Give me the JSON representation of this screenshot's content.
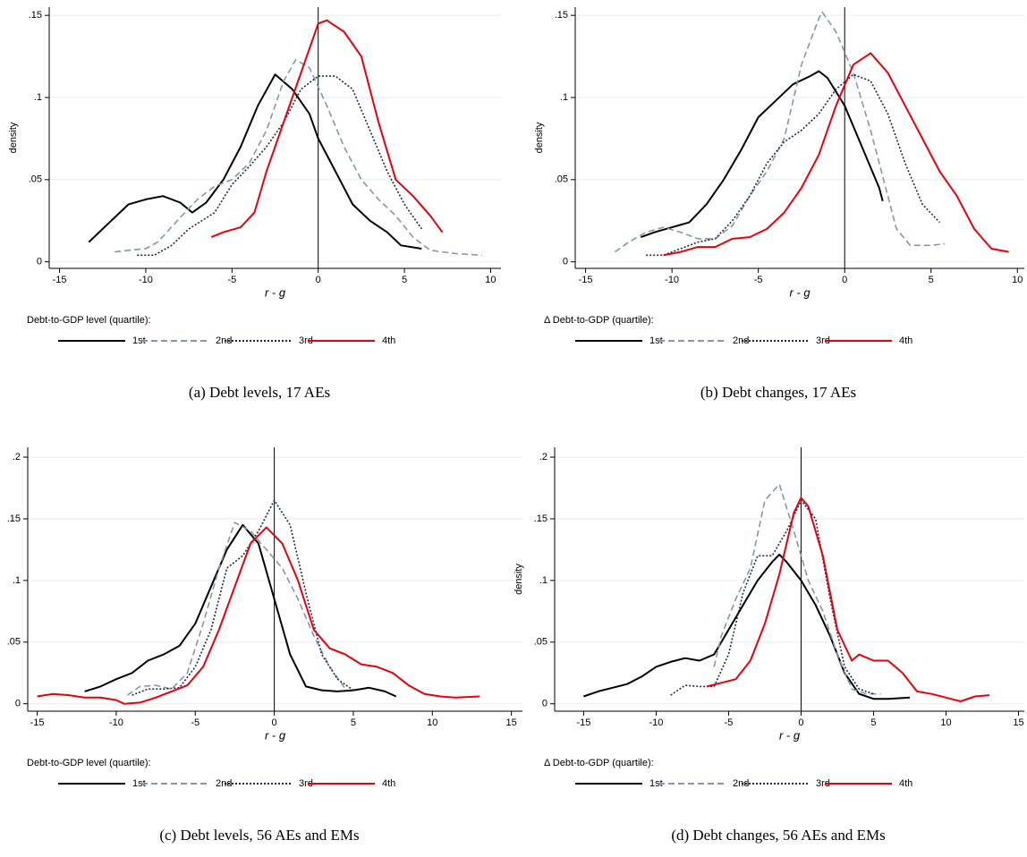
{
  "chart_data": [
    {
      "type": "line",
      "caption": "(a) Debt levels, 17 AEs",
      "ylabel": "density",
      "xlabel": "r - g",
      "legend_title": "Debt-to-GDP level (quartile):",
      "xlim": [
        -15.6,
        10.6
      ],
      "ylim": [
        -0.004,
        0.155
      ],
      "xticks": [
        -15,
        -10,
        -5,
        0,
        5,
        10
      ],
      "yticks": [
        0,
        {
          "value": 0.05,
          "label": ".05"
        },
        {
          "value": 0.1,
          "label": ".1"
        },
        {
          "value": 0.15,
          "label": ".15"
        }
      ],
      "vline": 0,
      "grid": true,
      "series": [
        {
          "name": "1st",
          "color": "#000000",
          "dash": "solid",
          "x": [
            -13.3,
            -12,
            -11,
            -10,
            -9,
            -8,
            -7.3,
            -6.5,
            -5.5,
            -4.5,
            -3.5,
            -2.5,
            -1.5,
            -0.5,
            0,
            1,
            2,
            3,
            4,
            4.8,
            6
          ],
          "values": [
            0.012,
            0.025,
            0.035,
            0.038,
            0.04,
            0.036,
            0.03,
            0.036,
            0.05,
            0.07,
            0.095,
            0.114,
            0.105,
            0.09,
            0.075,
            0.055,
            0.035,
            0.025,
            0.018,
            0.01,
            0.008
          ]
        },
        {
          "name": "2nd",
          "color": "#8596ae",
          "dash": "dashed",
          "x": [
            -11.8,
            -11,
            -10,
            -9.3,
            -8,
            -7,
            -6,
            -5,
            -4,
            -3,
            -2,
            -1.3,
            -0.5,
            0.5,
            1.5,
            2.5,
            3.5,
            4.5,
            5.5,
            6.5,
            8,
            9.5
          ],
          "values": [
            0.006,
            0.007,
            0.008,
            0.012,
            0.027,
            0.038,
            0.046,
            0.05,
            0.06,
            0.08,
            0.11,
            0.123,
            0.118,
            0.095,
            0.07,
            0.05,
            0.038,
            0.028,
            0.015,
            0.007,
            0.005,
            0.004
          ]
        },
        {
          "name": "3rd",
          "color": "#1c2b4c",
          "dash": "dotted",
          "x": [
            -10.5,
            -9.5,
            -8.5,
            -7.5,
            -6,
            -5,
            -4,
            -3,
            -2,
            -1,
            0,
            1,
            2,
            3,
            4,
            5,
            6
          ],
          "values": [
            0.004,
            0.004,
            0.01,
            0.02,
            0.03,
            0.047,
            0.058,
            0.07,
            0.085,
            0.105,
            0.113,
            0.113,
            0.105,
            0.08,
            0.055,
            0.035,
            0.02
          ]
        },
        {
          "name": "4th",
          "color": "#e8000b",
          "dash": "solid",
          "x": [
            -6.2,
            -5.5,
            -4.5,
            -3.7,
            -3,
            -2,
            -1,
            0,
            0.5,
            1.5,
            2.5,
            3.5,
            4.5,
            5.5,
            6.5,
            7.2
          ],
          "values": [
            0.015,
            0.018,
            0.021,
            0.03,
            0.055,
            0.085,
            0.115,
            0.145,
            0.147,
            0.14,
            0.125,
            0.085,
            0.05,
            0.04,
            0.028,
            0.018
          ]
        }
      ]
    },
    {
      "type": "line",
      "caption": "(b) Debt changes, 17 AEs",
      "ylabel": "density",
      "xlabel": "r - g",
      "legend_title": "Δ Debt-to-GDP (quartile):",
      "xlim": [
        -15.6,
        10.4
      ],
      "ylim": [
        -0.004,
        0.155
      ],
      "xticks": [
        -15,
        -10,
        -5,
        0,
        5,
        10
      ],
      "yticks": [
        0,
        {
          "value": 0.05,
          "label": ".05"
        },
        {
          "value": 0.1,
          "label": ".1"
        },
        {
          "value": 0.15,
          "label": ".15"
        }
      ],
      "vline": 0,
      "grid": true,
      "series": [
        {
          "name": "1st",
          "color": "#000000",
          "dash": "solid",
          "x": [
            -11.8,
            -11,
            -10,
            -9,
            -8,
            -7,
            -6,
            -5,
            -4,
            -3,
            -2,
            -1.5,
            -1,
            0,
            1,
            2,
            2.2
          ],
          "values": [
            0.015,
            0.018,
            0.021,
            0.024,
            0.035,
            0.05,
            0.068,
            0.088,
            0.098,
            0.108,
            0.113,
            0.116,
            0.112,
            0.095,
            0.07,
            0.045,
            0.037
          ]
        },
        {
          "name": "2nd",
          "color": "#8596ae",
          "dash": "dashed",
          "x": [
            -13.3,
            -12.5,
            -11.5,
            -10.5,
            -9.5,
            -8.5,
            -7.5,
            -6.5,
            -5.5,
            -4.5,
            -3.5,
            -2.5,
            -1.5,
            -1.3,
            -0.5,
            0.5,
            1.5,
            2.5,
            3,
            3.8,
            5,
            5.8
          ],
          "values": [
            0.006,
            0.012,
            0.018,
            0.021,
            0.018,
            0.014,
            0.014,
            0.022,
            0.04,
            0.055,
            0.075,
            0.12,
            0.148,
            0.152,
            0.14,
            0.115,
            0.08,
            0.04,
            0.02,
            0.01,
            0.01,
            0.011
          ]
        },
        {
          "name": "3rd",
          "color": "#1c2b4c",
          "dash": "dotted",
          "x": [
            -11.5,
            -10.5,
            -9.5,
            -8.5,
            -7.5,
            -6.5,
            -5.5,
            -4.5,
            -3.5,
            -2.5,
            -1.5,
            -0.5,
            0.5,
            1.5,
            2.5,
            3.5,
            4.5,
            5.5
          ],
          "values": [
            0.004,
            0.004,
            0.008,
            0.012,
            0.014,
            0.025,
            0.04,
            0.06,
            0.073,
            0.08,
            0.09,
            0.105,
            0.114,
            0.11,
            0.09,
            0.06,
            0.035,
            0.024
          ]
        },
        {
          "name": "4th",
          "color": "#e8000b",
          "dash": "solid",
          "x": [
            -10.5,
            -9.5,
            -8.5,
            -7.5,
            -6.5,
            -5.5,
            -4.5,
            -3.5,
            -2.5,
            -1.5,
            -0.5,
            0.5,
            1.5,
            2.5,
            3.5,
            4.5,
            5.5,
            6.5,
            7.5,
            8.5,
            9.5
          ],
          "values": [
            0.004,
            0.006,
            0.009,
            0.009,
            0.014,
            0.015,
            0.02,
            0.03,
            0.045,
            0.065,
            0.095,
            0.12,
            0.127,
            0.115,
            0.095,
            0.075,
            0.055,
            0.04,
            0.02,
            0.008,
            0.006
          ]
        }
      ]
    },
    {
      "type": "line",
      "caption": "(c) Debt levels, 56 AEs and EMs",
      "ylabel": "density",
      "xlabel": "r - g",
      "legend_title": "Debt-to-GDP level (quartile):",
      "xlim": [
        -15.6,
        15.7
      ],
      "ylim": [
        -0.006,
        0.208
      ],
      "xticks": [
        -15,
        -10,
        -5,
        0,
        5,
        10,
        15
      ],
      "yticks": [
        0,
        {
          "value": 0.05,
          "label": ".05"
        },
        {
          "value": 0.1,
          "label": ".1"
        },
        {
          "value": 0.15,
          "label": ".15"
        },
        {
          "value": 0.2,
          "label": ".2"
        }
      ],
      "vline": 0,
      "grid": true,
      "series": [
        {
          "name": "1st",
          "color": "#000000",
          "dash": "solid",
          "x": [
            -12,
            -11,
            -10,
            -9,
            -8,
            -7,
            -6,
            -5,
            -4,
            -3,
            -2,
            -1,
            0,
            1,
            2,
            3,
            4,
            5,
            6,
            7,
            7.7
          ],
          "values": [
            0.01,
            0.014,
            0.02,
            0.025,
            0.035,
            0.04,
            0.047,
            0.065,
            0.095,
            0.125,
            0.145,
            0.13,
            0.085,
            0.04,
            0.014,
            0.011,
            0.01,
            0.011,
            0.013,
            0.01,
            0.006
          ]
        },
        {
          "name": "2nd",
          "color": "#8596ae",
          "dash": "dashed",
          "x": [
            -9.3,
            -8.5,
            -7.5,
            -6.5,
            -5.5,
            -4.5,
            -3.5,
            -2.5,
            -1.5,
            -0.5,
            0.5,
            1.5,
            2.5,
            3.5,
            4.5
          ],
          "values": [
            0.007,
            0.014,
            0.015,
            0.012,
            0.025,
            0.065,
            0.11,
            0.147,
            0.14,
            0.125,
            0.11,
            0.085,
            0.055,
            0.03,
            0.012
          ]
        },
        {
          "name": "3rd",
          "color": "#1c2b4c",
          "dash": "dotted",
          "x": [
            -9,
            -8,
            -7,
            -6,
            -5,
            -4,
            -3,
            -2,
            -1,
            0,
            1,
            2,
            3,
            4,
            5
          ],
          "values": [
            0.007,
            0.012,
            0.012,
            0.013,
            0.03,
            0.06,
            0.11,
            0.12,
            0.14,
            0.165,
            0.145,
            0.09,
            0.04,
            0.02,
            0.011
          ]
        },
        {
          "name": "4th",
          "color": "#e8000b",
          "dash": "solid",
          "x": [
            -15,
            -14,
            -13,
            -12,
            -11,
            -10,
            -9.5,
            -8.5,
            -7.5,
            -6.5,
            -5.5,
            -4.5,
            -3.5,
            -2.5,
            -1.5,
            -0.5,
            0.5,
            1.5,
            2.5,
            3.5,
            4.5,
            5.5,
            6.5,
            7.5,
            8.5,
            9.5,
            10.5,
            11.5,
            13
          ],
          "values": [
            0.006,
            0.008,
            0.007,
            0.005,
            0.005,
            0.003,
            0,
            0.001,
            0.005,
            0.01,
            0.015,
            0.03,
            0.06,
            0.095,
            0.13,
            0.143,
            0.13,
            0.1,
            0.06,
            0.045,
            0.04,
            0.032,
            0.03,
            0.025,
            0.015,
            0.008,
            0.006,
            0.005,
            0.006
          ]
        }
      ]
    },
    {
      "type": "line",
      "caption": "(d) Debt changes, 56 AEs and EMs",
      "ylabel": "density",
      "xlabel": "r - g",
      "legend_title": "Δ Debt-to-GDP (quartile):",
      "xlim": [
        -17,
        15.4
      ],
      "ylim": [
        -0.006,
        0.208
      ],
      "xticks": [
        -15,
        -10,
        -5,
        0,
        5,
        10,
        15
      ],
      "yticks": [
        0,
        {
          "value": 0.05,
          "label": ".05"
        },
        {
          "value": 0.1,
          "label": ".1"
        },
        {
          "value": 0.15,
          "label": ".15"
        },
        {
          "value": 0.2,
          "label": ".2"
        }
      ],
      "vline": 0,
      "grid": true,
      "series": [
        {
          "name": "1st",
          "color": "#000000",
          "dash": "solid",
          "x": [
            -15,
            -14,
            -13,
            -12,
            -11,
            -10,
            -9,
            -8,
            -7,
            -6,
            -5,
            -4,
            -3,
            -2,
            -1.5,
            -1,
            0,
            1,
            2,
            3,
            4,
            5,
            6,
            7.5
          ],
          "values": [
            0.006,
            0.01,
            0.013,
            0.016,
            0.022,
            0.03,
            0.034,
            0.037,
            0.035,
            0.04,
            0.06,
            0.08,
            0.1,
            0.115,
            0.121,
            0.115,
            0.1,
            0.08,
            0.055,
            0.025,
            0.008,
            0.004,
            0.004,
            0.005
          ]
        },
        {
          "name": "2nd",
          "color": "#8596ae",
          "dash": "dashed",
          "x": [
            -6,
            -5.5,
            -4.5,
            -3.5,
            -2.5,
            -1.5,
            -0.5,
            0.5,
            1.5,
            2.5,
            3.5,
            4.5,
            5.5
          ],
          "values": [
            0.03,
            0.055,
            0.085,
            0.11,
            0.165,
            0.178,
            0.14,
            0.1,
            0.075,
            0.04,
            0.012,
            0.008,
            0.008
          ]
        },
        {
          "name": "3rd",
          "color": "#1c2b4c",
          "dash": "dotted",
          "x": [
            -9,
            -8,
            -7,
            -6,
            -5,
            -4,
            -3,
            -2,
            -1,
            0,
            1,
            2,
            3,
            4,
            5
          ],
          "values": [
            0.007,
            0.015,
            0.014,
            0.014,
            0.04,
            0.09,
            0.12,
            0.12,
            0.14,
            0.165,
            0.15,
            0.085,
            0.03,
            0.012,
            0.008
          ]
        },
        {
          "name": "4th",
          "color": "#e8000b",
          "dash": "solid",
          "x": [
            -6.5,
            -5.5,
            -4.5,
            -3.5,
            -2.5,
            -1.5,
            -0.5,
            0,
            0.5,
            1.5,
            2.5,
            3.5,
            4,
            5,
            6,
            7,
            8,
            9,
            10,
            11,
            12,
            13
          ],
          "values": [
            0.014,
            0.017,
            0.02,
            0.035,
            0.065,
            0.105,
            0.155,
            0.167,
            0.16,
            0.12,
            0.06,
            0.035,
            0.04,
            0.035,
            0.035,
            0.025,
            0.01,
            0.008,
            0.005,
            0.002,
            0.006,
            0.007
          ]
        }
      ]
    }
  ]
}
